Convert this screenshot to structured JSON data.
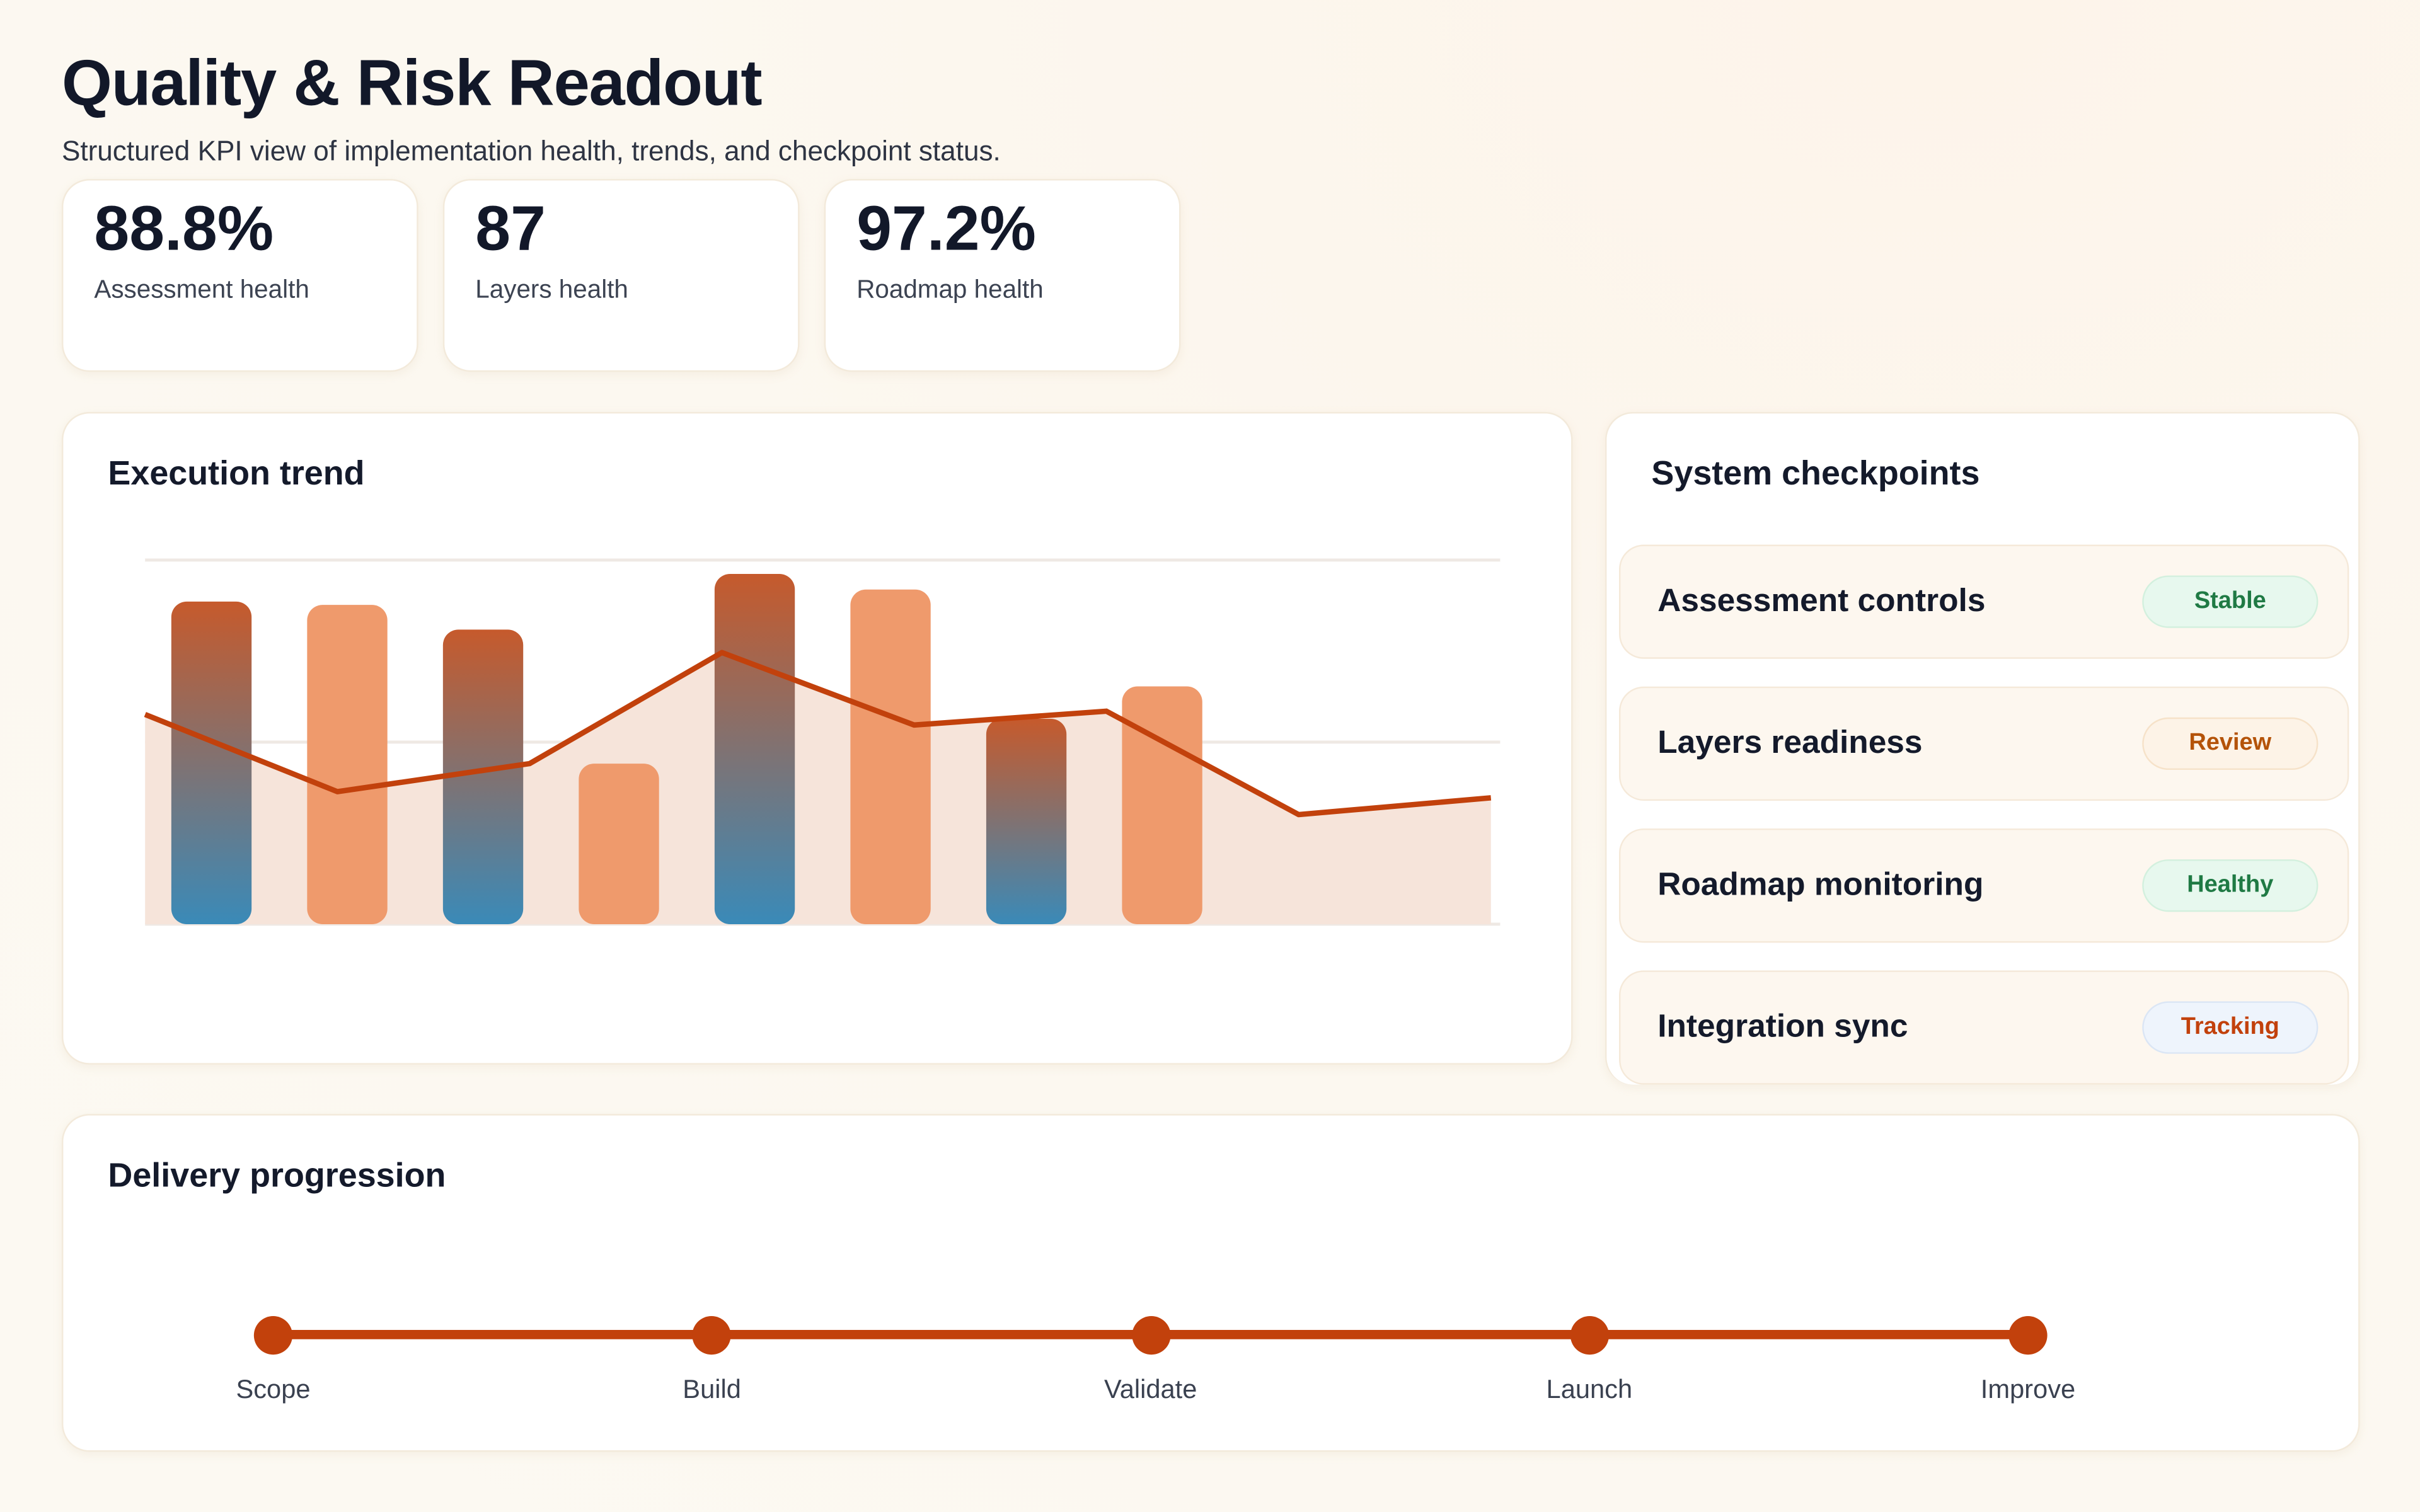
{
  "header": {
    "title": "Quality & Risk Readout",
    "subtitle": "Structured KPI view of implementation health, trends, and checkpoint status."
  },
  "kpis": [
    {
      "value": "88.8%",
      "label": "Assessment health"
    },
    {
      "value": "87",
      "label": "Layers health"
    },
    {
      "value": "97.2%",
      "label": "Roadmap health"
    }
  ],
  "trend": {
    "title": "Execution trend",
    "chart_data": {
      "type": "bar+line",
      "y_range": [
        0,
        100
      ],
      "grid": true,
      "bars": [
        88.6,
        87.7,
        80.9,
        44.1,
        96.2,
        91.9,
        56.4,
        65.3
      ],
      "bar_styles": [
        "gradient",
        "solid",
        "gradient",
        "solid",
        "gradient",
        "solid",
        "gradient",
        "solid"
      ],
      "line": [
        57.6,
        36.4,
        44.1,
        74.6,
        54.7,
        58.5,
        30.1,
        34.7
      ],
      "colors": {
        "line": "#c2410c",
        "area": "#f6e4da",
        "bar_solid": "#ef9a6c",
        "gradient_top": "#c65a2c",
        "gradient_bottom": "#3a8ab8",
        "grid": "#efe9e4"
      }
    }
  },
  "checkpoints": {
    "title": "System checkpoints",
    "items": [
      {
        "name": "Assessment controls",
        "status": "Stable",
        "tone": "green"
      },
      {
        "name": "Layers readiness",
        "status": "Review",
        "tone": "amber"
      },
      {
        "name": "Roadmap monitoring",
        "status": "Healthy",
        "tone": "green"
      },
      {
        "name": "Integration sync",
        "status": "Tracking",
        "tone": "blue"
      }
    ],
    "tone_colors": {
      "green": {
        "bg": "#e7f8ee",
        "border": "#d3f0de",
        "text": "#1f7a44"
      },
      "amber": {
        "bg": "#fdf3e7",
        "border": "#f6e2c9",
        "text": "#b45309"
      },
      "blue": {
        "bg": "#eef4fc",
        "border": "#dbe6f5",
        "text": "#c2410c"
      }
    }
  },
  "delivery": {
    "title": "Delivery progression",
    "steps": [
      "Scope",
      "Build",
      "Validate",
      "Launch",
      "Improve"
    ],
    "accent": "#c2410c"
  }
}
